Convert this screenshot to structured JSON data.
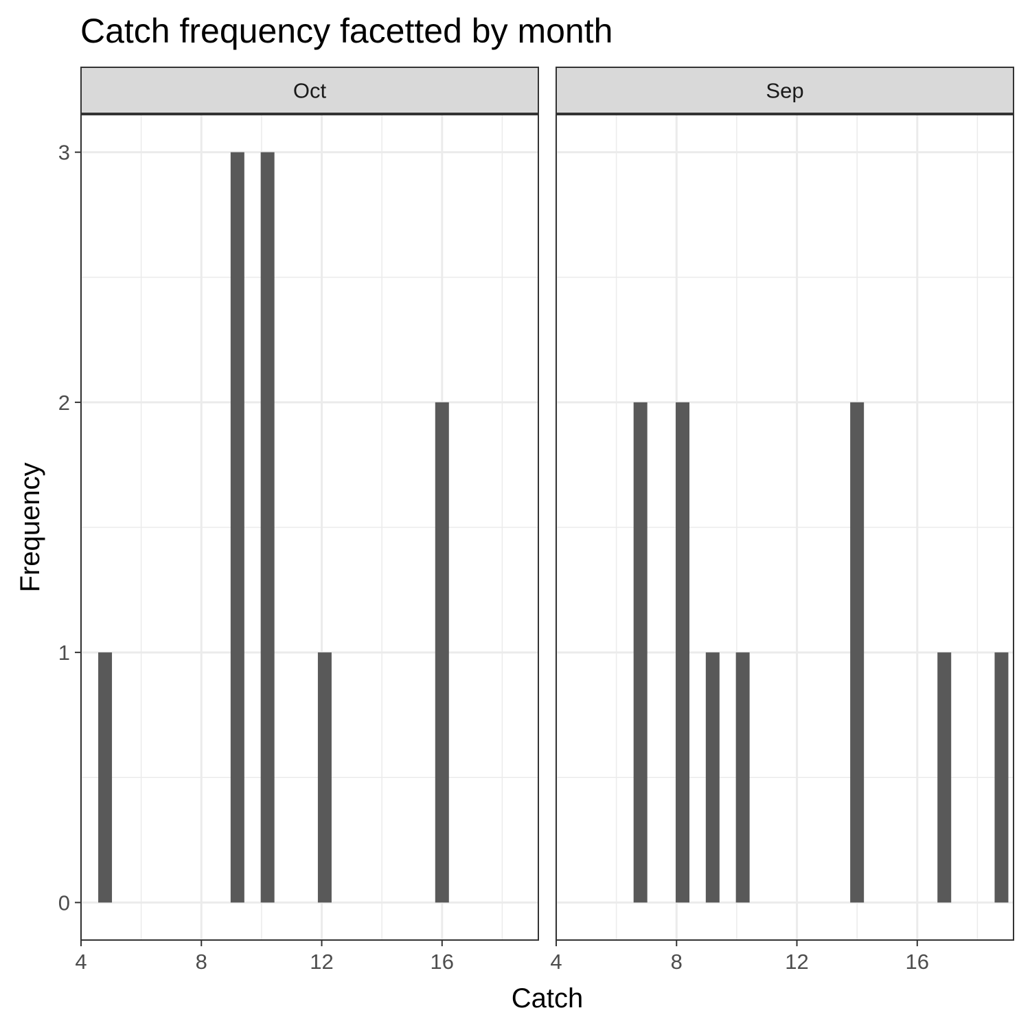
{
  "chart_data": {
    "type": "bar",
    "title": "Catch frequency facetted by month",
    "xlabel": "Catch",
    "ylabel": "Frequency",
    "xlim": [
      4,
      19.2
    ],
    "ylim": [
      -0.15,
      3.15
    ],
    "x_ticks": [
      4,
      8,
      12,
      16
    ],
    "y_ticks": [
      0,
      1,
      2,
      3
    ],
    "grid": true,
    "bar_color": "#595959",
    "strip_color": "#d9d9d9",
    "panels": [
      {
        "name": "Oct",
        "x": [
          4.8,
          9.2,
          10.2,
          12.1,
          16
        ],
        "values": [
          1,
          3,
          3,
          1,
          2
        ]
      },
      {
        "name": "Sep",
        "x": [
          6.8,
          8.2,
          9.2,
          10.2,
          14,
          16.9,
          18.8
        ],
        "values": [
          2,
          2,
          1,
          1,
          2,
          1,
          1
        ]
      }
    ]
  }
}
